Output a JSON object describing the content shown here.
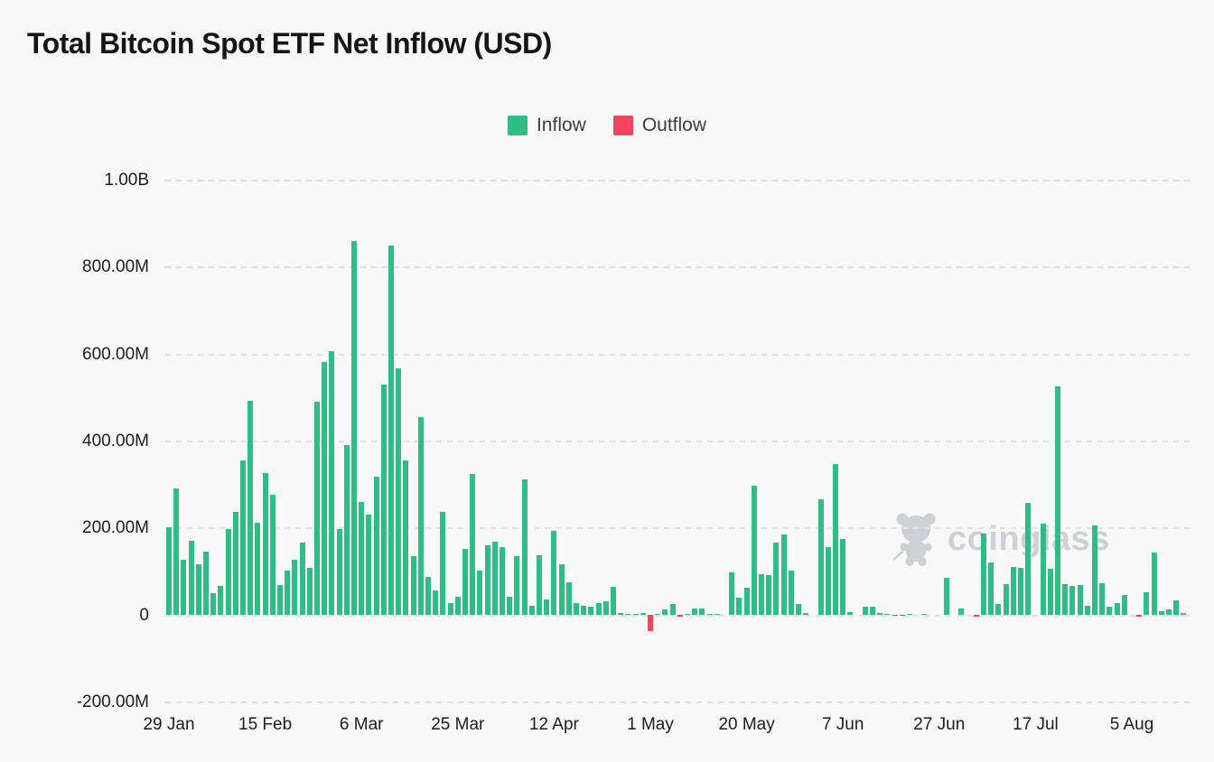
{
  "header": {
    "title": "Total Bitcoin Spot ETF Net Inflow (USD)"
  },
  "legend": {
    "items": [
      {
        "label": "Inflow",
        "color": "#2ebd85"
      },
      {
        "label": "Outflow",
        "color": "#f1455f"
      }
    ]
  },
  "watermark": {
    "text": "coinglass"
  },
  "chart_data": {
    "type": "bar",
    "title": "Total Bitcoin Spot ETF Net Inflow (USD)",
    "unit": "USD millions",
    "grid": "dashed horizontal",
    "legend_position": "top-center",
    "ylim_m": [
      -200,
      1000
    ],
    "y_ticks": [
      "1.00B",
      "800.00M",
      "600.00M",
      "400.00M",
      "200.00M",
      "0",
      "-200.00M"
    ],
    "y_tick_values_m": [
      1000,
      800,
      600,
      400,
      200,
      0,
      -200
    ],
    "x_tick_labels": [
      "29 Jan",
      "15 Feb",
      "6 Mar",
      "25 Mar",
      "12 Apr",
      "1 May",
      "20 May",
      "7 Jun",
      "27 Jun",
      "17 Jul",
      "5 Aug"
    ],
    "x_tick_bar_indices": [
      0,
      13,
      26,
      39,
      52,
      65,
      78,
      91,
      104,
      117,
      130
    ],
    "colors": {
      "inflow": "#2ebd85",
      "outflow": "#f1455f"
    },
    "series": [
      {
        "name": "Net Inflow",
        "values_m": [
          200,
          290,
          125,
          170,
          115,
          145,
          50,
          65,
          197,
          236,
          355,
          492,
          212,
          325,
          275,
          67,
          100,
          125,
          166,
          108,
          490,
          580,
          605,
          197,
          390,
          858,
          258,
          229,
          316,
          528,
          849,
          567,
          354,
          135,
          453,
          87,
          56,
          236,
          26,
          40,
          151,
          323,
          101,
          160,
          168,
          156,
          41,
          135,
          310,
          20,
          137,
          34,
          192,
          116,
          75,
          27,
          20,
          17,
          27,
          31,
          64,
          3,
          2,
          2,
          3,
          -38,
          2,
          12,
          24,
          -5,
          1,
          14,
          14,
          2,
          1,
          0,
          97,
          38,
          62,
          296,
          92,
          90,
          166,
          184,
          101,
          24,
          3,
          0,
          265,
          154,
          347,
          173,
          5,
          0,
          19,
          19,
          3,
          2,
          -2,
          -3,
          1,
          0,
          1,
          0,
          0,
          84,
          0,
          14,
          0,
          -4,
          186,
          119,
          25,
          70,
          110,
          108,
          256,
          0,
          210,
          106,
          524,
          70,
          65,
          68,
          20,
          205,
          73,
          18,
          27,
          44,
          0,
          -5,
          51,
          143,
          8,
          12,
          33,
          3
        ]
      }
    ]
  }
}
